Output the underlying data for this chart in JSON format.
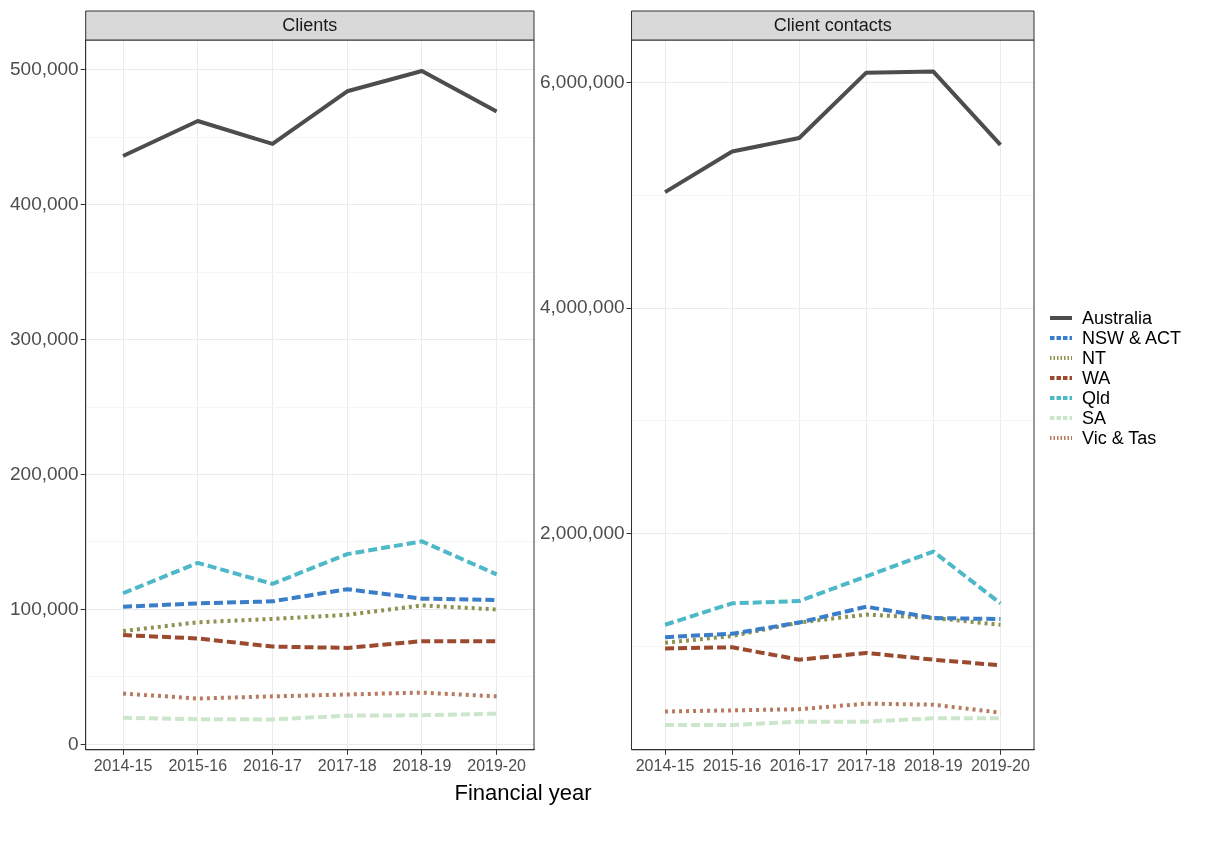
{
  "chart_data": [
    {
      "type": "line",
      "title": "Clients",
      "xlabel": "Financial year",
      "categories": [
        "2014-15",
        "2015-16",
        "2016-17",
        "2017-18",
        "2018-19",
        "2019-20"
      ],
      "series": [
        {
          "color": "#4d4d4d",
          "line_style": "solid",
          "values": [
            436000,
            462000,
            445000,
            484000,
            499000,
            469000
          ]
        },
        {
          "color": "#3a7dc9",
          "line_style": "dashed",
          "values": [
            102000,
            104500,
            106000,
            115000,
            108000,
            107000
          ]
        },
        {
          "color": "#8e9150",
          "line_style": "dotted",
          "values": [
            84000,
            90500,
            93000,
            96000,
            103000,
            100000
          ]
        },
        {
          "color": "#9c4a2f",
          "line_style": "dashed",
          "values": [
            81000,
            78500,
            72500,
            71500,
            76500,
            76500
          ]
        },
        {
          "color": "#4db8c8",
          "line_style": "dashed",
          "values": [
            112000,
            134500,
            119000,
            141000,
            150500,
            126000
          ]
        },
        {
          "color": "#cce6cc",
          "line_style": "dashed",
          "values": [
            19700,
            18700,
            18500,
            21300,
            21600,
            22800
          ]
        },
        {
          "color": "#b87a5f",
          "line_style": "dotted",
          "values": [
            37700,
            34000,
            35600,
            37000,
            38400,
            35600
          ]
        }
      ],
      "ylim": [
        -4000,
        522000
      ],
      "yticks": [
        0,
        {
          "value": 50000,
          "label": null
        },
        {
          "value": 100000,
          "label": "100,000"
        },
        {
          "value": 150000,
          "label": null
        },
        {
          "value": 200000,
          "label": "200,000"
        },
        {
          "value": 250000,
          "label": null
        },
        {
          "value": 300000,
          "label": "300,000"
        },
        {
          "value": 350000,
          "label": null
        },
        {
          "value": 400000,
          "label": "400,000"
        },
        {
          "value": 450000,
          "label": null
        },
        {
          "value": 500000,
          "label": "500,000"
        }
      ],
      "grid": true,
      "marker": "none"
    },
    {
      "type": "line",
      "title": "Client contacts",
      "categories": [
        "2014-15",
        "2015-16",
        "2016-17",
        "2017-18",
        "2018-19",
        "2019-20"
      ],
      "series": [
        {
          "name": "Australia",
          "color": "#4d4d4d",
          "line_style": "solid",
          "values": [
            5030000,
            5390000,
            5510000,
            6090000,
            6100000,
            5450000
          ]
        },
        {
          "name": "NSW & ACT",
          "color": "#3a7dc9",
          "line_style": "dashed",
          "values": [
            1080000,
            1110000,
            1210000,
            1350000,
            1250000,
            1240000
          ]
        },
        {
          "name": "NT",
          "color": "#8e9150",
          "line_style": "dotted",
          "values": [
            1030000,
            1090000,
            1210000,
            1280000,
            1250000,
            1190000
          ]
        },
        {
          "name": "WA",
          "color": "#9c4a2f",
          "line_style": "dashed",
          "values": [
            980000,
            990000,
            880000,
            940000,
            880000,
            830000
          ]
        },
        {
          "name": "Qld",
          "color": "#4db8c8",
          "line_style": "dashed",
          "values": [
            1190000,
            1380000,
            1400000,
            1620000,
            1840000,
            1380000
          ]
        },
        {
          "name": "SA",
          "color": "#cce6cc",
          "line_style": "dashed",
          "values": [
            300000,
            300000,
            330000,
            330000,
            360000,
            360000
          ]
        },
        {
          "name": "Vic & Tas",
          "color": "#b87a5f",
          "line_style": "dotted",
          "values": [
            420000,
            430000,
            440000,
            490000,
            480000,
            410000
          ]
        }
      ],
      "ylim": [
        80000,
        6380000
      ],
      "yticks": [
        {
          "value": 1000000,
          "label": null
        },
        {
          "value": 2000000,
          "label": "2,000,000"
        },
        {
          "value": 3000000,
          "label": null
        },
        {
          "value": 4000000,
          "label": "4,000,000"
        },
        {
          "value": 5000000,
          "label": null
        },
        {
          "value": 6000000,
          "label": "6,000,000"
        }
      ],
      "grid": true,
      "legend": "right",
      "marker": "none"
    }
  ]
}
